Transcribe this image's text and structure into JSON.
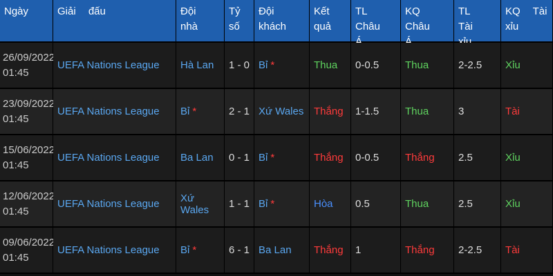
{
  "table": {
    "header": [
      "Ngày",
      "Giải đấu",
      "Đội nhà",
      "Tỷ số",
      "Đội khách",
      "Kết quả",
      "TL Châu Á",
      "KQ Châu Á",
      "TL Tài xỉu",
      "KQ Tài xỉu"
    ],
    "rows": [
      {
        "date": "26/09/2022",
        "time": "01:45",
        "league": "UEFA Nations League",
        "home": {
          "name": "Hà Lan"
        },
        "score": "1 - 0",
        "away": {
          "name": "Bỉ",
          "star": "*"
        },
        "result": {
          "text": "Thua",
          "color": "#5fd35f"
        },
        "hcap": "0-0.5",
        "hcap_result": {
          "text": "Thua",
          "color": "#5fd35f"
        },
        "ou": "2-2.5",
        "ou_result": {
          "text": "Xỉu",
          "color": "#5fd35f"
        }
      },
      {
        "date": "23/09/2022",
        "time": "01:45",
        "league": "UEFA Nations League",
        "home": {
          "name": "Bỉ",
          "star": "*"
        },
        "score": "2 - 1",
        "away": {
          "name": "Xứ Wales"
        },
        "result": {
          "text": "Thắng",
          "color": "#ff3b3b"
        },
        "hcap": "1-1.5",
        "hcap_result": {
          "text": "Thua",
          "color": "#5fd35f"
        },
        "ou": "3",
        "ou_result": {
          "text": "Tài",
          "color": "#ff3b3b"
        }
      },
      {
        "date": "15/06/2022",
        "time": "01:45",
        "league": "UEFA Nations League",
        "home": {
          "name": "Ba Lan"
        },
        "score": "0 - 1",
        "away": {
          "name": "Bỉ",
          "star": "*"
        },
        "result": {
          "text": "Thắng",
          "color": "#ff3b3b"
        },
        "hcap": "0-0.5",
        "hcap_result": {
          "text": "Thắng",
          "color": "#ff3b3b"
        },
        "ou": "2.5",
        "ou_result": {
          "text": "Xỉu",
          "color": "#5fd35f"
        }
      },
      {
        "date": "12/06/2022",
        "time": "01:45",
        "league": "UEFA Nations League",
        "home": {
          "name": "Xứ Wales"
        },
        "score": "1 - 1",
        "away": {
          "name": "Bỉ",
          "star": "*"
        },
        "result": {
          "text": "Hòa",
          "color": "#4a90ff"
        },
        "hcap": "0.5",
        "hcap_result": {
          "text": "Thua",
          "color": "#5fd35f"
        },
        "ou": "2.5",
        "ou_result": {
          "text": "Xỉu",
          "color": "#5fd35f"
        }
      },
      {
        "date": "09/06/2022",
        "time": "01:45",
        "league": "UEFA Nations League",
        "home": {
          "name": "Bỉ",
          "star": "*"
        },
        "score": "6 - 1",
        "away": {
          "name": "Ba Lan"
        },
        "result": {
          "text": "Thắng",
          "color": "#ff3b3b"
        },
        "hcap": "1",
        "hcap_result": {
          "text": "Thắng",
          "color": "#ff3b3b"
        },
        "ou": "2-2.5",
        "ou_result": {
          "text": "Tài",
          "color": "#ff3b3b"
        }
      }
    ]
  }
}
